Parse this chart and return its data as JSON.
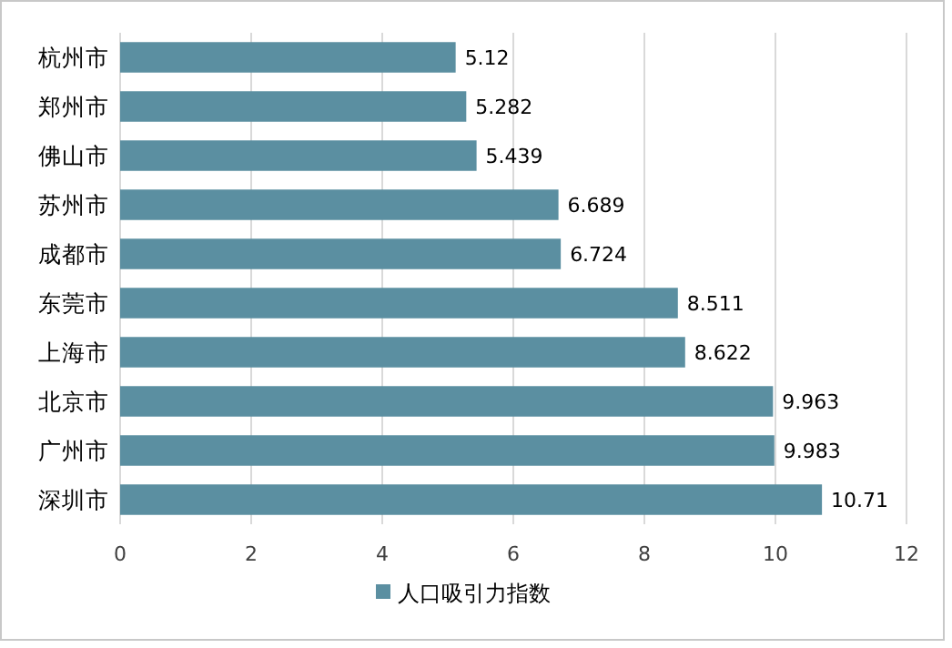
{
  "chart_data": {
    "type": "bar",
    "orientation": "horizontal",
    "categories": [
      "杭州市",
      "郑州市",
      "佛山市",
      "苏州市",
      "成都市",
      "东莞市",
      "上海市",
      "北京市",
      "广州市",
      "深圳市"
    ],
    "series": [
      {
        "name": "人口吸引力指数",
        "color": "#5b8fa1",
        "values": [
          5.12,
          5.282,
          5.439,
          6.689,
          6.724,
          8.511,
          8.622,
          9.963,
          9.983,
          10.71
        ]
      }
    ],
    "xlim": [
      0,
      12
    ],
    "xticks": [
      0,
      2,
      4,
      6,
      8,
      10,
      12
    ],
    "grid": "x",
    "legend": "bottom",
    "data_labels": true
  }
}
